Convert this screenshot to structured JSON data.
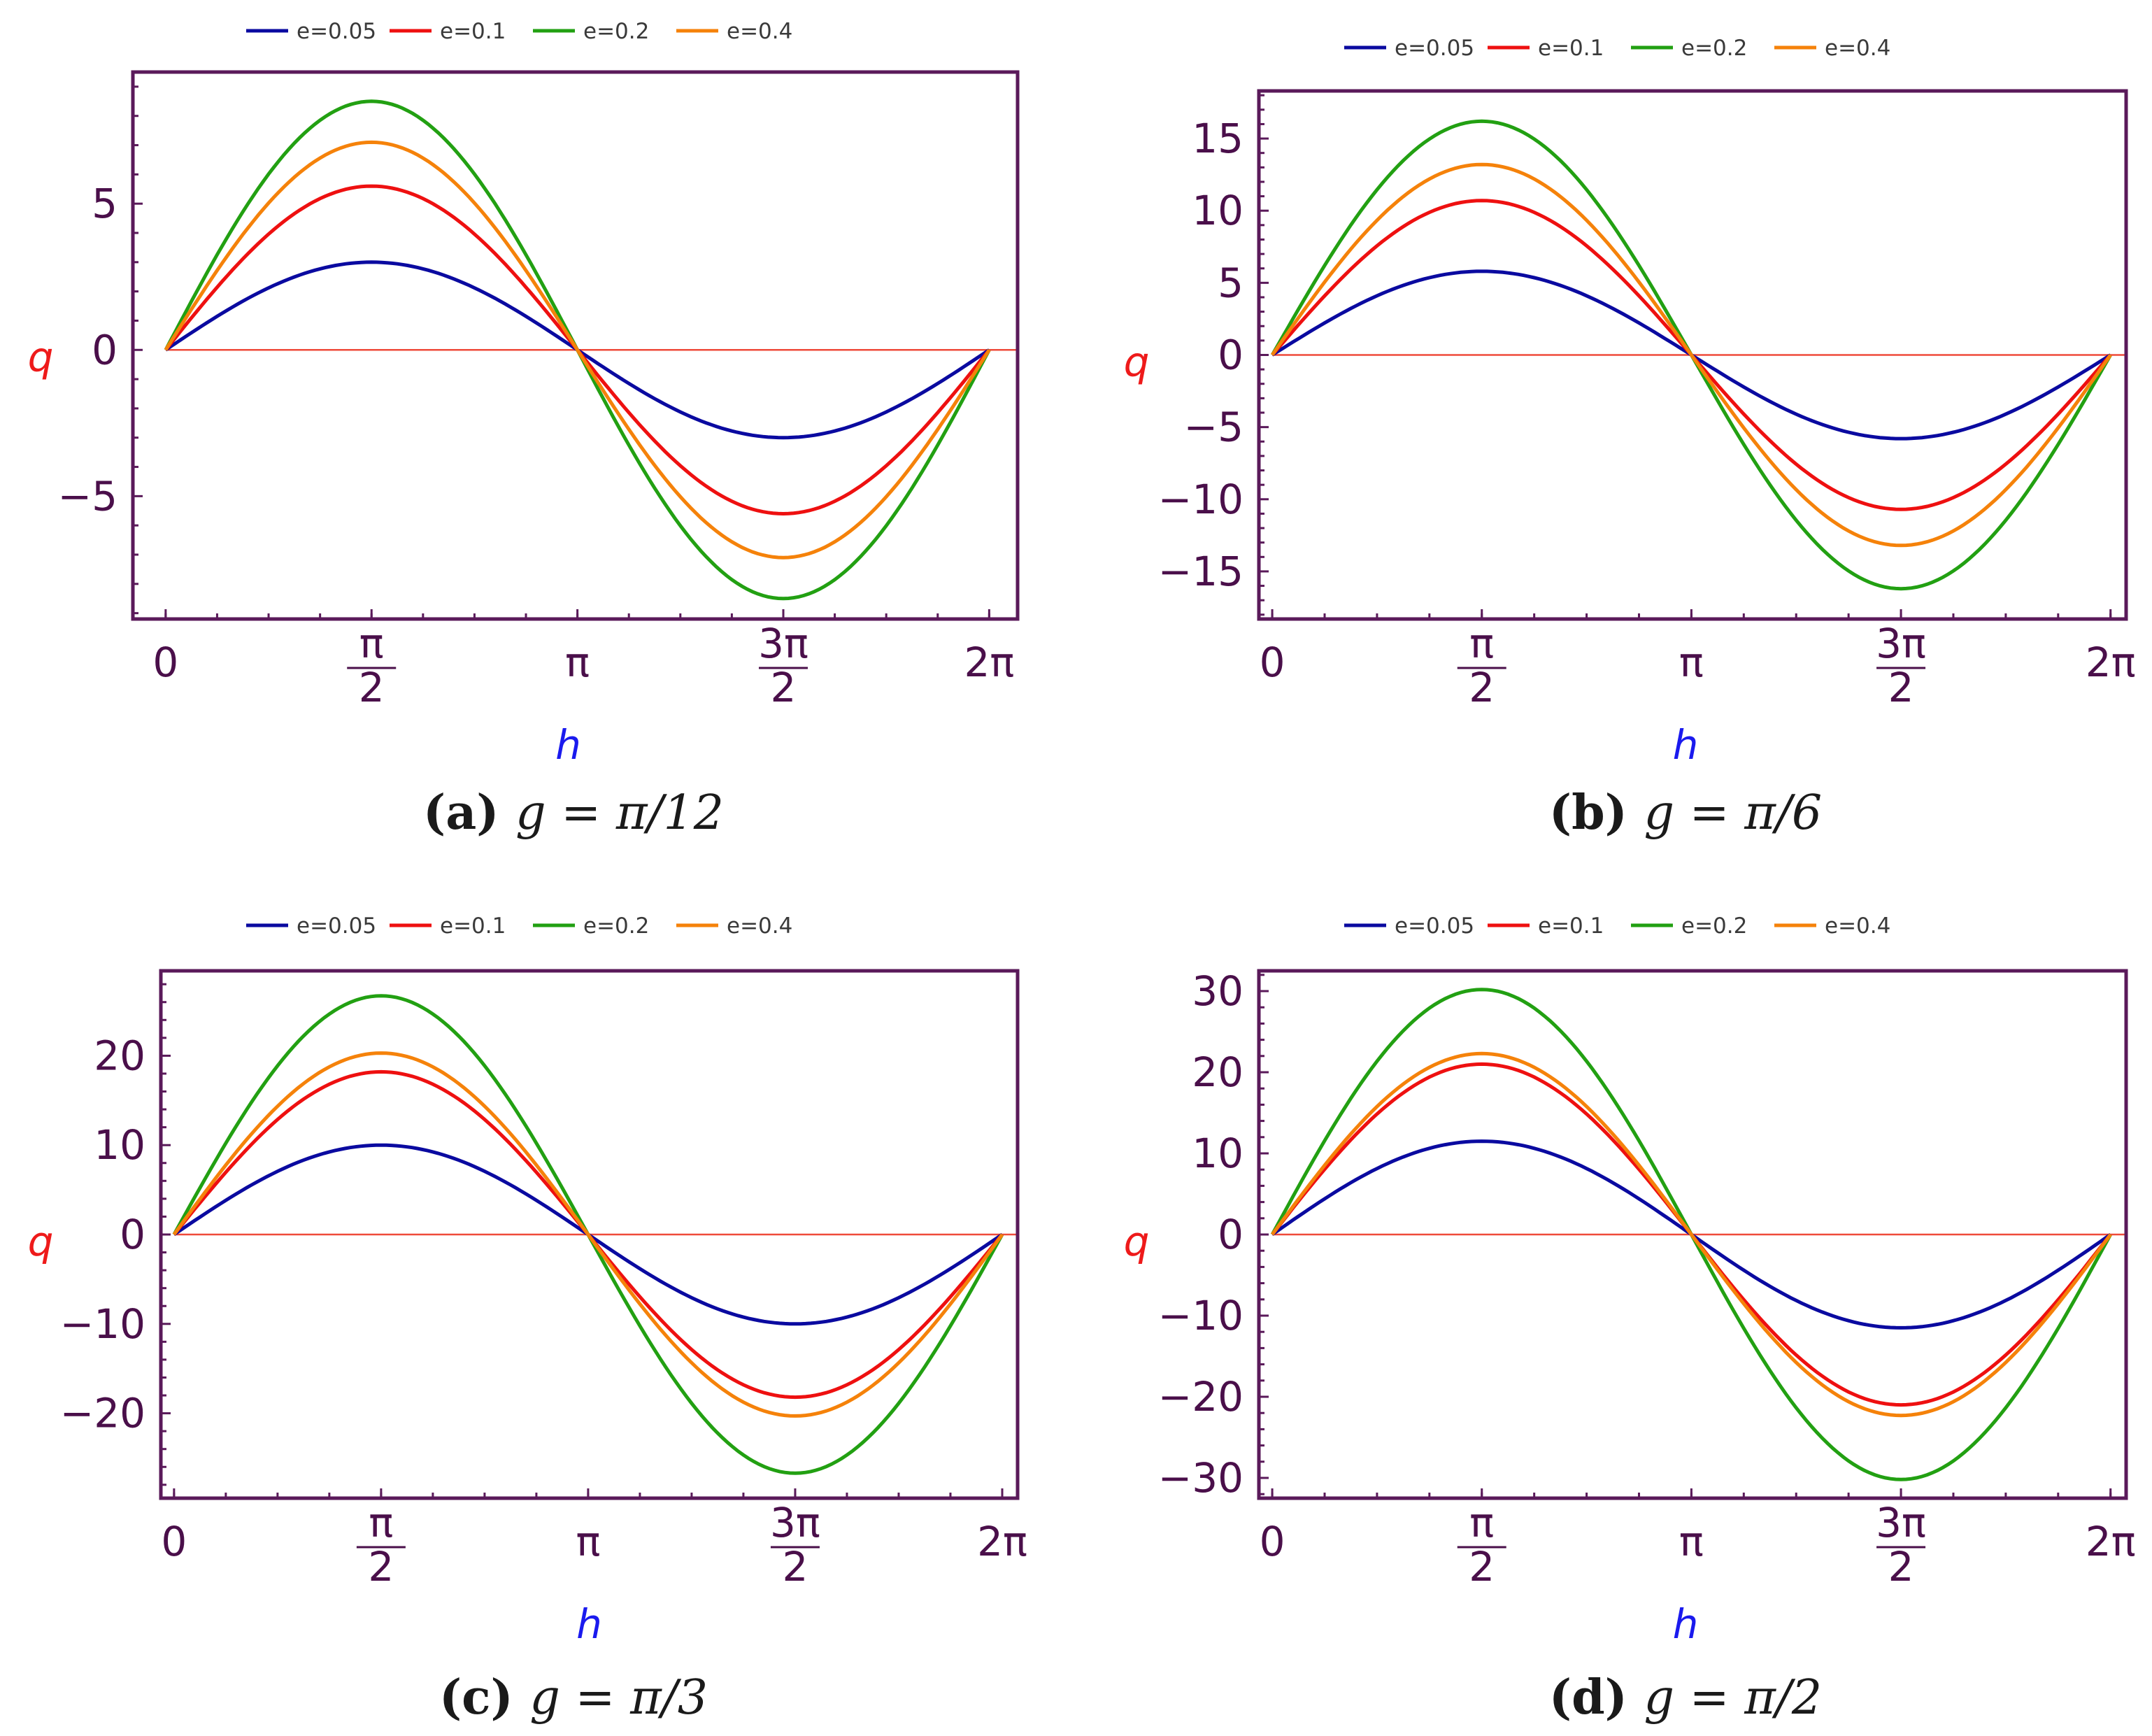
{
  "colors": {
    "frame": "#5a1a5a",
    "tick_label": "#4a0f4a",
    "zero_line": "#ef4a3a",
    "xlabel": "#1a1aee",
    "ylabel": "#ee1a1a"
  },
  "legend_entries": [
    {
      "label": "e=0.05",
      "color": "#0a0aa0"
    },
    {
      "label": "e=0.1",
      "color": "#ee1010"
    },
    {
      "label": "e=0.2",
      "color": "#22a012"
    },
    {
      "label": "e=0.4",
      "color": "#f5820a"
    }
  ],
  "chart_data": [
    {
      "type": "line",
      "caption_letter": "(a)",
      "caption_text": "g = π/12",
      "xlabel": "h",
      "ylabel": "q",
      "xlim": [
        -0.25,
        6.5
      ],
      "ylim": [
        -9.2,
        9.5
      ],
      "xticks": [
        {
          "value": 0,
          "label": "0"
        },
        {
          "value": 1.5708,
          "label": "π/2"
        },
        {
          "value": 3.1416,
          "label": "π"
        },
        {
          "value": 4.7124,
          "label": "3π/2"
        },
        {
          "value": 6.2832,
          "label": "2π"
        }
      ],
      "yticks": [
        {
          "value": -5,
          "label": "−5"
        },
        {
          "value": 0,
          "label": "0"
        },
        {
          "value": 5,
          "label": "5"
        }
      ],
      "series": [
        {
          "name": "e=0.05",
          "amplitude": 3.0
        },
        {
          "name": "e=0.1",
          "amplitude": 5.6
        },
        {
          "name": "e=0.2",
          "amplitude": 8.5
        },
        {
          "name": "e=0.4",
          "amplitude": 7.1
        }
      ]
    },
    {
      "type": "line",
      "caption_letter": "(b)",
      "caption_text": "g = π/6",
      "xlabel": "h",
      "ylabel": "q",
      "xlim": [
        -0.1,
        6.4
      ],
      "ylim": [
        -18.3,
        18.3
      ],
      "xticks": [
        {
          "value": 0,
          "label": "0"
        },
        {
          "value": 1.5708,
          "label": "π/2"
        },
        {
          "value": 3.1416,
          "label": "π"
        },
        {
          "value": 4.7124,
          "label": "3π/2"
        },
        {
          "value": 6.2832,
          "label": "2π"
        }
      ],
      "yticks": [
        {
          "value": -15,
          "label": "−15"
        },
        {
          "value": -10,
          "label": "−10"
        },
        {
          "value": -5,
          "label": "−5"
        },
        {
          "value": 0,
          "label": "0"
        },
        {
          "value": 5,
          "label": "5"
        },
        {
          "value": 10,
          "label": "10"
        },
        {
          "value": 15,
          "label": "15"
        }
      ],
      "series": [
        {
          "name": "e=0.05",
          "amplitude": 5.8
        },
        {
          "name": "e=0.1",
          "amplitude": 10.7
        },
        {
          "name": "e=0.2",
          "amplitude": 16.2
        },
        {
          "name": "e=0.4",
          "amplitude": 13.2
        }
      ]
    },
    {
      "type": "line",
      "caption_letter": "(c)",
      "caption_text": "g = π/3",
      "xlabel": "h",
      "ylabel": "q",
      "xlim": [
        -0.1,
        6.4
      ],
      "ylim": [
        -29.5,
        29.5
      ],
      "xticks": [
        {
          "value": 0,
          "label": "0"
        },
        {
          "value": 1.5708,
          "label": "π/2"
        },
        {
          "value": 3.1416,
          "label": "π"
        },
        {
          "value": 4.7124,
          "label": "3π/2"
        },
        {
          "value": 6.2832,
          "label": "2π"
        }
      ],
      "yticks": [
        {
          "value": -20,
          "label": "−20"
        },
        {
          "value": -10,
          "label": "−10"
        },
        {
          "value": 0,
          "label": "0"
        },
        {
          "value": 10,
          "label": "10"
        },
        {
          "value": 20,
          "label": "20"
        }
      ],
      "series": [
        {
          "name": "e=0.05",
          "amplitude": 10.0
        },
        {
          "name": "e=0.1",
          "amplitude": 18.2
        },
        {
          "name": "e=0.2",
          "amplitude": 26.7
        },
        {
          "name": "e=0.4",
          "amplitude": 20.3
        }
      ]
    },
    {
      "type": "line",
      "caption_letter": "(d)",
      "caption_text": "g = π/2",
      "xlabel": "h",
      "ylabel": "q",
      "xlim": [
        -0.1,
        6.4
      ],
      "ylim": [
        -32.5,
        32.5
      ],
      "xticks": [
        {
          "value": 0,
          "label": "0"
        },
        {
          "value": 1.5708,
          "label": "π/2"
        },
        {
          "value": 3.1416,
          "label": "π"
        },
        {
          "value": 4.7124,
          "label": "3π/2"
        },
        {
          "value": 6.2832,
          "label": "2π"
        }
      ],
      "yticks": [
        {
          "value": -30,
          "label": "−30"
        },
        {
          "value": -20,
          "label": "−20"
        },
        {
          "value": -10,
          "label": "−10"
        },
        {
          "value": 0,
          "label": "0"
        },
        {
          "value": 10,
          "label": "10"
        },
        {
          "value": 20,
          "label": "20"
        },
        {
          "value": 30,
          "label": "30"
        }
      ],
      "series": [
        {
          "name": "e=0.05",
          "amplitude": 11.5
        },
        {
          "name": "e=0.1",
          "amplitude": 21.0
        },
        {
          "name": "e=0.2",
          "amplitude": 30.2
        },
        {
          "name": "e=0.4",
          "amplitude": 22.3
        }
      ]
    }
  ]
}
